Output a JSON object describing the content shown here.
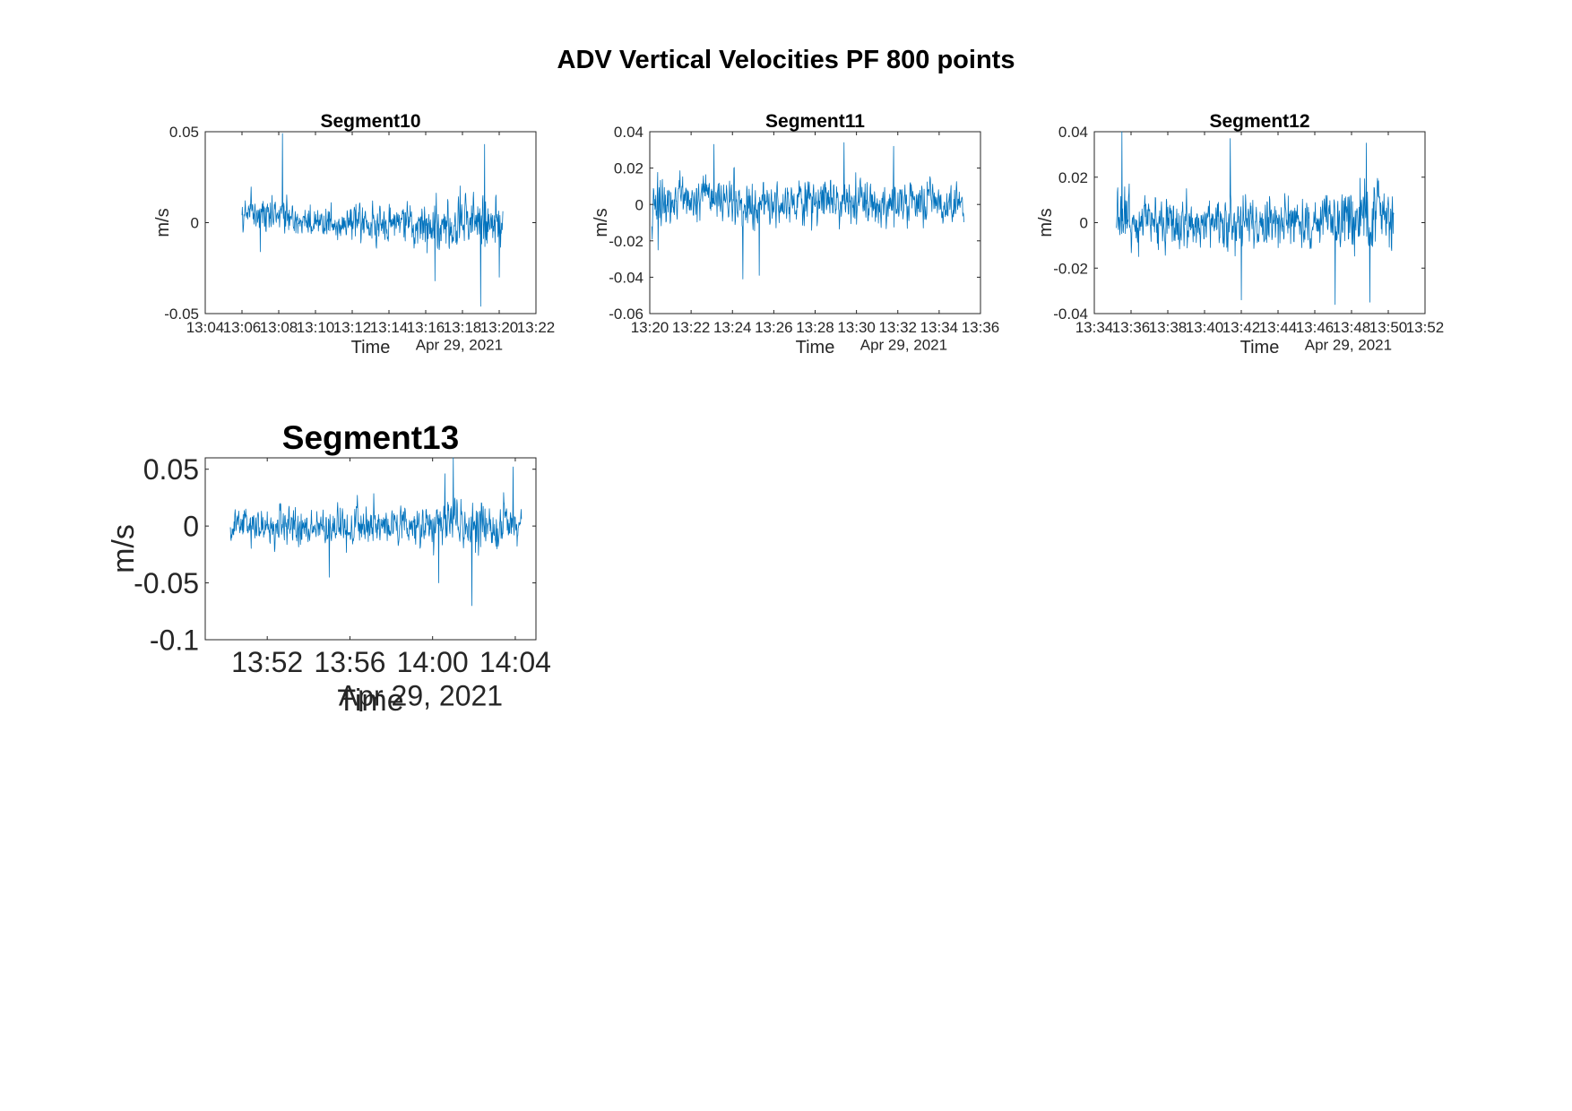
{
  "figure_title": "ADV Vertical Velocities PF 800 points",
  "colors": {
    "series": "#0072bd",
    "axis": "#262626",
    "text": "#000000",
    "background": "#ffffff"
  },
  "chart_data": [
    {
      "type": "line",
      "title": "Segment10",
      "xlabel": "Time",
      "ylabel": "m/s",
      "date_label": "Apr 29, 2021",
      "xlim_minutes": [
        784,
        802
      ],
      "ylim": [
        -0.05,
        0.05
      ],
      "x_ticks": [
        "13:04",
        "13:06",
        "13:08",
        "13:10",
        "13:12",
        "13:14",
        "13:16",
        "13:18",
        "13:20",
        "13:22"
      ],
      "x_tick_values": [
        784,
        786,
        788,
        790,
        792,
        794,
        796,
        798,
        800,
        802
      ],
      "y_ticks": [
        "-0.05",
        "0",
        "0.05"
      ],
      "y_tick_values": [
        -0.05,
        0,
        0.05
      ],
      "series": [
        {
          "name": "vertical velocity",
          "x_start": 786.0,
          "x_end": 800.2,
          "points": 800,
          "std": 0.0065,
          "seed": 10,
          "mean_profile": [
            [
              786,
              0.003
            ],
            [
              788,
              0.006
            ],
            [
              790,
              0.0
            ],
            [
              794,
              -0.001
            ],
            [
              797,
              -0.002
            ],
            [
              799,
              0.002
            ],
            [
              800.2,
              -0.004
            ]
          ],
          "noise_envelope": [
            [
              786,
              0.9
            ],
            [
              795,
              1.0
            ],
            [
              797.5,
              1.5
            ],
            [
              800.2,
              1.3
            ]
          ],
          "peaks": [
            [
              788.2,
              0.049
            ],
            [
              799.2,
              0.043
            ],
            [
              799.0,
              -0.046
            ],
            [
              796.5,
              -0.032
            ],
            [
              800.0,
              -0.03
            ],
            [
              787.0,
              -0.016
            ]
          ]
        }
      ]
    },
    {
      "type": "line",
      "title": "Segment11",
      "xlabel": "Time",
      "ylabel": "m/s",
      "date_label": "Apr 29, 2021",
      "xlim_minutes": [
        800,
        816
      ],
      "ylim": [
        -0.06,
        0.04
      ],
      "x_ticks": [
        "13:20",
        "13:22",
        "13:24",
        "13:26",
        "13:28",
        "13:30",
        "13:32",
        "13:34",
        "13:36"
      ],
      "x_tick_values": [
        800,
        802,
        804,
        806,
        808,
        810,
        812,
        814,
        816
      ],
      "y_ticks": [
        "-0.06",
        "-0.04",
        "-0.02",
        "0",
        "0.02",
        "0.04"
      ],
      "y_tick_values": [
        -0.06,
        -0.04,
        -0.02,
        0,
        0.02,
        0.04
      ],
      "series": [
        {
          "name": "vertical velocity",
          "x_start": 800.1,
          "x_end": 815.2,
          "points": 800,
          "std": 0.0085,
          "seed": 11,
          "mean_profile": [
            [
              800.1,
              0.002
            ],
            [
              803,
              0.004
            ],
            [
              805,
              -0.002
            ],
            [
              808,
              0.002
            ],
            [
              811,
              0.0
            ],
            [
              815.2,
              0.0
            ]
          ],
          "noise_envelope": [
            [
              800.1,
              1.0
            ],
            [
              815.2,
              1.0
            ]
          ],
          "peaks": [
            [
              804.5,
              -0.041
            ],
            [
              805.3,
              -0.039
            ],
            [
              800.4,
              -0.025
            ],
            [
              809.4,
              0.034
            ],
            [
              803.1,
              0.033
            ],
            [
              811.8,
              0.032
            ]
          ]
        }
      ]
    },
    {
      "type": "line",
      "title": "Segment12",
      "xlabel": "Time",
      "ylabel": "m/s",
      "date_label": "Apr 29, 2021",
      "xlim_minutes": [
        814,
        832
      ],
      "ylim": [
        -0.04,
        0.04
      ],
      "x_ticks": [
        "13:34",
        "13:36",
        "13:38",
        "13:40",
        "13:42",
        "13:44",
        "13:46",
        "13:48",
        "13:50",
        "13:52"
      ],
      "x_tick_values": [
        814,
        816,
        818,
        820,
        822,
        824,
        826,
        828,
        830,
        832
      ],
      "y_ticks": [
        "-0.04",
        "-0.02",
        "0",
        "0.02",
        "0.04"
      ],
      "y_tick_values": [
        -0.04,
        -0.02,
        0,
        0.02,
        0.04
      ],
      "series": [
        {
          "name": "vertical velocity",
          "x_start": 815.2,
          "x_end": 830.3,
          "points": 800,
          "std": 0.0075,
          "seed": 12,
          "mean_profile": [
            [
              815.2,
              0.001
            ],
            [
              820,
              0.0
            ],
            [
              825,
              0.0
            ],
            [
              830.3,
              0.002
            ]
          ],
          "noise_envelope": [
            [
              815.2,
              1.0
            ],
            [
              826,
              0.95
            ],
            [
              828,
              1.2
            ],
            [
              830.3,
              1.35
            ]
          ],
          "peaks": [
            [
              815.5,
              0.04
            ],
            [
              822.0,
              -0.034
            ],
            [
              827.1,
              -0.036
            ],
            [
              829.0,
              -0.035
            ],
            [
              821.4,
              0.037
            ],
            [
              828.8,
              0.035
            ]
          ]
        }
      ]
    },
    {
      "type": "line",
      "title": "Segment13",
      "xlabel": "Time",
      "ylabel": "m/s",
      "date_label": "Apr 29, 2021",
      "xlim_minutes": [
        829,
        845
      ],
      "ylim": [
        -0.1,
        0.06
      ],
      "x_ticks": [
        "13:52",
        "13:56",
        "14:00",
        "14:04"
      ],
      "x_tick_values": [
        832,
        836,
        840,
        844
      ],
      "y_ticks": [
        "-0.1",
        "-0.05",
        "0",
        "0.05"
      ],
      "y_tick_values": [
        -0.1,
        -0.05,
        0,
        0.05
      ],
      "series": [
        {
          "name": "vertical velocity",
          "x_start": 830.2,
          "x_end": 844.3,
          "points": 800,
          "std": 0.011,
          "seed": 13,
          "mean_profile": [
            [
              830.2,
              0.0
            ],
            [
              836,
              0.0
            ],
            [
              840,
              0.002
            ],
            [
              844.3,
              0.0
            ]
          ],
          "noise_envelope": [
            [
              830.2,
              0.9
            ],
            [
              838,
              1.0
            ],
            [
              840,
              1.35
            ],
            [
              844.3,
              1.15
            ]
          ],
          "peaks": [
            [
              841.0,
              0.06
            ],
            [
              841.9,
              -0.07
            ],
            [
              835.0,
              -0.045
            ],
            [
              840.3,
              -0.05
            ],
            [
              843.9,
              0.052
            ],
            [
              840.6,
              0.046
            ]
          ]
        }
      ]
    }
  ]
}
